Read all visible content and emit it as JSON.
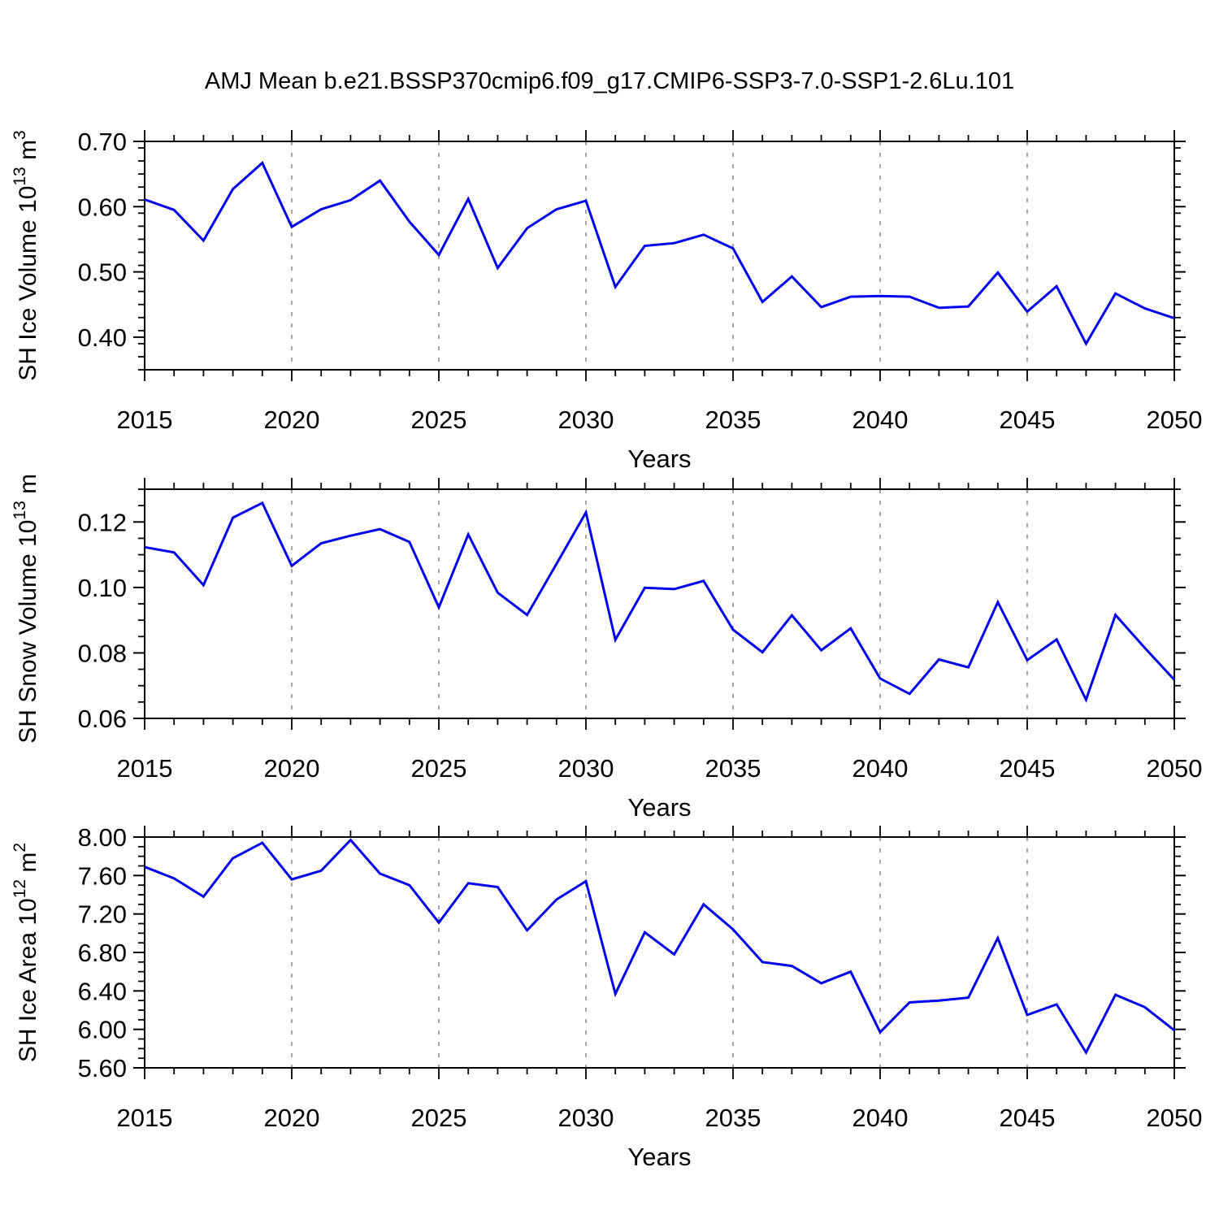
{
  "title": "AMJ Mean b.e21.BSSP370cmip6.f09_g17.CMIP6-SSP3-7.0-SSP1-2.6Lu.101",
  "line_color": "#0000ee",
  "grid_color": "#777777",
  "axis_color": "#000000",
  "chart_data": [
    {
      "type": "line",
      "id": "sh_ice_volume",
      "ylabel": {
        "base": "SH Ice Volume 10",
        "exponent": "13",
        "unit": " m",
        "unit_exponent": "3"
      },
      "xlabel": "Years",
      "xlim": [
        2015,
        2050
      ],
      "ylim": [
        0.35,
        0.7
      ],
      "grid_years": [
        2020,
        2025,
        2030,
        2035,
        2040,
        2045
      ],
      "xticks": [
        {
          "value": 2015,
          "label": "2015"
        },
        {
          "value": 2020,
          "label": "2020"
        },
        {
          "value": 2025,
          "label": "2025"
        },
        {
          "value": 2030,
          "label": "2030"
        },
        {
          "value": 2035,
          "label": "2035"
        },
        {
          "value": 2040,
          "label": "2040"
        },
        {
          "value": 2045,
          "label": "2045"
        },
        {
          "value": 2050,
          "label": "2050"
        }
      ],
      "yticks": [
        {
          "value": 0.4,
          "label": "0.40"
        },
        {
          "value": 0.5,
          "label": "0.50"
        },
        {
          "value": 0.6,
          "label": "0.60"
        },
        {
          "value": 0.7,
          "label": "0.70"
        }
      ],
      "yminor_step": 0.02,
      "x": [
        2015,
        2016,
        2017,
        2018,
        2019,
        2020,
        2021,
        2022,
        2023,
        2024,
        2025,
        2026,
        2027,
        2028,
        2029,
        2030,
        2031,
        2032,
        2033,
        2034,
        2035,
        2036,
        2037,
        2038,
        2039,
        2040,
        2041,
        2042,
        2043,
        2044,
        2045,
        2046,
        2047,
        2048,
        2049,
        2050
      ],
      "values": [
        0.611,
        0.595,
        0.548,
        0.627,
        0.667,
        0.569,
        0.596,
        0.61,
        0.64,
        0.577,
        0.526,
        0.612,
        0.506,
        0.567,
        0.596,
        0.609,
        0.477,
        0.54,
        0.544,
        0.557,
        0.536,
        0.454,
        0.493,
        0.446,
        0.462,
        0.463,
        0.462,
        0.445,
        0.447,
        0.499,
        0.439,
        0.478,
        0.39,
        0.467,
        0.444,
        0.429
      ]
    },
    {
      "type": "line",
      "id": "sh_snow_volume",
      "ylabel": {
        "base": "SH Snow Volume 10",
        "exponent": "13",
        "unit": " m",
        "unit_exponent": "3"
      },
      "xlabel": "Years",
      "xlim": [
        2015,
        2050
      ],
      "ylim": [
        0.06,
        0.13
      ],
      "grid_years": [
        2020,
        2025,
        2030,
        2035,
        2040,
        2045
      ],
      "xticks": [
        {
          "value": 2015,
          "label": "2015"
        },
        {
          "value": 2020,
          "label": "2020"
        },
        {
          "value": 2025,
          "label": "2025"
        },
        {
          "value": 2030,
          "label": "2030"
        },
        {
          "value": 2035,
          "label": "2035"
        },
        {
          "value": 2040,
          "label": "2040"
        },
        {
          "value": 2045,
          "label": "2045"
        },
        {
          "value": 2050,
          "label": "2050"
        }
      ],
      "yticks": [
        {
          "value": 0.06,
          "label": "0.06"
        },
        {
          "value": 0.08,
          "label": "0.08"
        },
        {
          "value": 0.1,
          "label": "0.10"
        },
        {
          "value": 0.12,
          "label": "0.12"
        }
      ],
      "yminor_step": 0.005,
      "x": [
        2015,
        2016,
        2017,
        2018,
        2019,
        2020,
        2021,
        2022,
        2023,
        2024,
        2025,
        2026,
        2027,
        2028,
        2029,
        2030,
        2031,
        2032,
        2033,
        2034,
        2035,
        2036,
        2037,
        2038,
        2039,
        2040,
        2041,
        2042,
        2043,
        2044,
        2045,
        2046,
        2047,
        2048,
        2049,
        2050
      ],
      "values": [
        0.1123,
        0.1107,
        0.1007,
        0.1213,
        0.1258,
        0.1066,
        0.1135,
        0.1158,
        0.1178,
        0.1139,
        0.0939,
        0.1162,
        0.0984,
        0.0916,
        0.1072,
        0.1229,
        0.084,
        0.0999,
        0.0995,
        0.102,
        0.0871,
        0.0802,
        0.0915,
        0.0808,
        0.0875,
        0.0722,
        0.0675,
        0.078,
        0.0756,
        0.0955,
        0.0778,
        0.0841,
        0.0657,
        0.0916,
        0.0815,
        0.0718
      ]
    },
    {
      "type": "line",
      "id": "sh_ice_area",
      "ylabel": {
        "base": "SH Ice Area 10",
        "exponent": "12",
        "unit": " m",
        "unit_exponent": "2"
      },
      "xlabel": "Years",
      "xlim": [
        2015,
        2050
      ],
      "ylim": [
        5.6,
        8.0
      ],
      "grid_years": [
        2020,
        2025,
        2030,
        2035,
        2040,
        2045
      ],
      "xticks": [
        {
          "value": 2015,
          "label": "2015"
        },
        {
          "value": 2020,
          "label": "2020"
        },
        {
          "value": 2025,
          "label": "2025"
        },
        {
          "value": 2030,
          "label": "2030"
        },
        {
          "value": 2035,
          "label": "2035"
        },
        {
          "value": 2040,
          "label": "2040"
        },
        {
          "value": 2045,
          "label": "2045"
        },
        {
          "value": 2050,
          "label": "2050"
        }
      ],
      "yticks": [
        {
          "value": 5.6,
          "label": "5.60"
        },
        {
          "value": 6.0,
          "label": "6.00"
        },
        {
          "value": 6.4,
          "label": "6.40"
        },
        {
          "value": 6.8,
          "label": "6.80"
        },
        {
          "value": 7.2,
          "label": "7.20"
        },
        {
          "value": 7.6,
          "label": "7.60"
        },
        {
          "value": 8.0,
          "label": "8.00"
        }
      ],
      "yminor_step": 0.1,
      "x": [
        2015,
        2016,
        2017,
        2018,
        2019,
        2020,
        2021,
        2022,
        2023,
        2024,
        2025,
        2026,
        2027,
        2028,
        2029,
        2030,
        2031,
        2032,
        2033,
        2034,
        2035,
        2036,
        2037,
        2038,
        2039,
        2040,
        2041,
        2042,
        2043,
        2044,
        2045,
        2046,
        2047,
        2048,
        2049,
        2050
      ],
      "values": [
        7.69,
        7.57,
        7.38,
        7.78,
        7.94,
        7.56,
        7.65,
        7.97,
        7.62,
        7.5,
        7.11,
        7.52,
        7.48,
        7.03,
        7.35,
        7.54,
        6.37,
        7.01,
        6.78,
        7.3,
        7.04,
        6.7,
        6.66,
        6.48,
        6.6,
        5.97,
        6.28,
        6.3,
        6.33,
        6.95,
        6.15,
        6.26,
        5.76,
        6.36,
        6.23,
        5.99
      ]
    }
  ]
}
